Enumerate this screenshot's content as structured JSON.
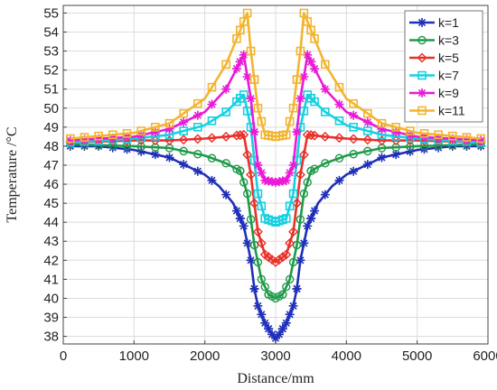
{
  "chart_data": {
    "type": "line",
    "xlabel": "Distance/mm",
    "ylabel": "Temperature /°C",
    "xlim": [
      0,
      6000
    ],
    "ylim": [
      37.6,
      55.4
    ],
    "xticks": [
      "0",
      "1000",
      "2000",
      "3000",
      "4000",
      "5000",
      "6000"
    ],
    "yticks": [
      "38",
      "39",
      "40",
      "41",
      "42",
      "43",
      "44",
      "45",
      "46",
      "47",
      "48",
      "49",
      "50",
      "51",
      "52",
      "53",
      "54",
      "55"
    ],
    "grid": true,
    "legend_position": "top-right",
    "series": [
      {
        "name": "k=1",
        "color": "#1f2fb8",
        "marker": "star",
        "points": [
          [
            100,
            48.0
          ],
          [
            500,
            48.0
          ],
          [
            1000,
            47.8
          ],
          [
            1500,
            47.4
          ],
          [
            2000,
            46.5
          ],
          [
            2200,
            45.9
          ],
          [
            2400,
            45.0
          ],
          [
            2550,
            43.8
          ],
          [
            2650,
            42.0
          ],
          [
            2700,
            40.5
          ],
          [
            2750,
            39.6
          ],
          [
            2850,
            38.7
          ],
          [
            2950,
            38.1
          ],
          [
            3000,
            37.9
          ],
          [
            3050,
            38.1
          ],
          [
            3150,
            38.7
          ],
          [
            3250,
            39.6
          ],
          [
            3300,
            40.5
          ],
          [
            3350,
            42.0
          ],
          [
            3450,
            43.8
          ],
          [
            3600,
            45.0
          ],
          [
            3800,
            45.9
          ],
          [
            4000,
            46.5
          ],
          [
            4500,
            47.4
          ],
          [
            5000,
            47.8
          ],
          [
            5500,
            48.0
          ],
          [
            5900,
            48.0
          ]
        ]
      },
      {
        "name": "k=3",
        "color": "#1f9a4a",
        "marker": "circle",
        "points": [
          [
            100,
            48.1
          ],
          [
            1000,
            48.0
          ],
          [
            1500,
            47.9
          ],
          [
            2000,
            47.5
          ],
          [
            2300,
            47.1
          ],
          [
            2500,
            46.7
          ],
          [
            2600,
            45.5
          ],
          [
            2700,
            42.8
          ],
          [
            2800,
            41.0
          ],
          [
            2900,
            40.2
          ],
          [
            3000,
            40.0
          ],
          [
            3100,
            40.2
          ],
          [
            3200,
            41.0
          ],
          [
            3300,
            42.8
          ],
          [
            3400,
            45.5
          ],
          [
            3500,
            46.7
          ],
          [
            3700,
            47.1
          ],
          [
            4000,
            47.5
          ],
          [
            4500,
            47.9
          ],
          [
            5000,
            48.0
          ],
          [
            5900,
            48.1
          ]
        ]
      },
      {
        "name": "k=5",
        "color": "#e8312a",
        "marker": "diamond",
        "points": [
          [
            100,
            48.2
          ],
          [
            1000,
            48.3
          ],
          [
            1500,
            48.3
          ],
          [
            2000,
            48.4
          ],
          [
            2300,
            48.5
          ],
          [
            2550,
            48.6
          ],
          [
            2650,
            46.5
          ],
          [
            2750,
            43.5
          ],
          [
            2850,
            42.3
          ],
          [
            3000,
            41.9
          ],
          [
            3150,
            42.3
          ],
          [
            3250,
            43.5
          ],
          [
            3350,
            46.5
          ],
          [
            3450,
            48.6
          ],
          [
            3700,
            48.5
          ],
          [
            4000,
            48.4
          ],
          [
            4500,
            48.3
          ],
          [
            5000,
            48.3
          ],
          [
            5900,
            48.2
          ]
        ]
      },
      {
        "name": "k=7",
        "color": "#17d0e0",
        "marker": "square",
        "points": [
          [
            100,
            48.2
          ],
          [
            1000,
            48.4
          ],
          [
            1500,
            48.6
          ],
          [
            2000,
            49.1
          ],
          [
            2300,
            49.8
          ],
          [
            2550,
            50.7
          ],
          [
            2650,
            49.0
          ],
          [
            2750,
            45.5
          ],
          [
            2850,
            44.2
          ],
          [
            3000,
            44.0
          ],
          [
            3150,
            44.2
          ],
          [
            3250,
            45.5
          ],
          [
            3350,
            49.0
          ],
          [
            3450,
            50.7
          ],
          [
            3700,
            49.8
          ],
          [
            4000,
            49.1
          ],
          [
            4500,
            48.6
          ],
          [
            5000,
            48.4
          ],
          [
            5900,
            48.2
          ]
        ]
      },
      {
        "name": "k=9",
        "color": "#ea1ad6",
        "marker": "star",
        "points": [
          [
            100,
            48.3
          ],
          [
            1000,
            48.5
          ],
          [
            1500,
            48.9
          ],
          [
            2000,
            49.8
          ],
          [
            2300,
            51.0
          ],
          [
            2550,
            52.8
          ],
          [
            2650,
            50.5
          ],
          [
            2750,
            47.0
          ],
          [
            2850,
            46.2
          ],
          [
            3000,
            46.1
          ],
          [
            3150,
            46.2
          ],
          [
            3250,
            47.0
          ],
          [
            3350,
            50.5
          ],
          [
            3450,
            52.8
          ],
          [
            3700,
            51.0
          ],
          [
            4000,
            49.8
          ],
          [
            4500,
            48.9
          ],
          [
            5000,
            48.5
          ],
          [
            5900,
            48.3
          ]
        ]
      },
      {
        "name": "k=11",
        "color": "#f2b530",
        "marker": "square",
        "points": [
          [
            100,
            48.4
          ],
          [
            1000,
            48.7
          ],
          [
            1500,
            49.2
          ],
          [
            2000,
            50.5
          ],
          [
            2300,
            52.3
          ],
          [
            2600,
            55.0
          ],
          [
            2650,
            53.0
          ],
          [
            2750,
            50.0
          ],
          [
            2850,
            48.6
          ],
          [
            3000,
            48.5
          ],
          [
            3150,
            48.6
          ],
          [
            3250,
            50.0
          ],
          [
            3350,
            53.0
          ],
          [
            3400,
            55.0
          ],
          [
            3700,
            52.3
          ],
          [
            4000,
            50.5
          ],
          [
            4500,
            49.2
          ],
          [
            5000,
            48.7
          ],
          [
            5900,
            48.4
          ]
        ]
      }
    ]
  }
}
